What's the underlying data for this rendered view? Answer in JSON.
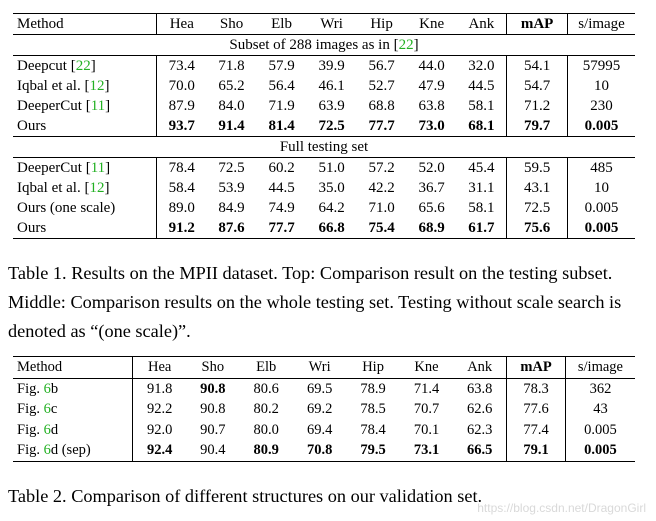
{
  "table1": {
    "header": [
      "Method",
      "Hea",
      "Sho",
      "Elb",
      "Wri",
      "Hip",
      "Kne",
      "Ank",
      "mAP",
      "s/image"
    ],
    "subset_title": {
      "text": "Subset of 288 images as in [",
      "ref": "22",
      "close": "]"
    },
    "full_title": "Full testing set",
    "subset_rows": [
      {
        "method": "Deepcut [",
        "ref": "22",
        "close": "]",
        "values": [
          "73.4",
          "71.8",
          "57.9",
          "39.9",
          "56.7",
          "44.0",
          "32.0",
          "54.1",
          "57995"
        ]
      },
      {
        "method": "Iqbal et al. [",
        "ref": "12",
        "close": "]",
        "values": [
          "70.0",
          "65.2",
          "56.4",
          "46.1",
          "52.7",
          "47.9",
          "44.5",
          "54.7",
          "10"
        ]
      },
      {
        "method": "DeeperCut [",
        "ref": "11",
        "close": "]",
        "values": [
          "87.9",
          "84.0",
          "71.9",
          "63.9",
          "68.8",
          "63.8",
          "58.1",
          "71.2",
          "230"
        ]
      },
      {
        "method": "Ours",
        "ref": "",
        "close": "",
        "values": [
          "93.7",
          "91.4",
          "81.4",
          "72.5",
          "77.7",
          "73.0",
          "68.1",
          "79.7",
          "0.005"
        ]
      }
    ],
    "full_rows": [
      {
        "method": "DeeperCut [",
        "ref": "11",
        "close": "]",
        "values": [
          "78.4",
          "72.5",
          "60.2",
          "51.0",
          "57.2",
          "52.0",
          "45.4",
          "59.5",
          "485"
        ]
      },
      {
        "method": "Iqbal et al. [",
        "ref": "12",
        "close": "]",
        "values": [
          "58.4",
          "53.9",
          "44.5",
          "35.0",
          "42.2",
          "36.7",
          "31.1",
          "43.1",
          "10"
        ]
      },
      {
        "method": "Ours (one scale)",
        "ref": "",
        "close": "",
        "values": [
          "89.0",
          "84.9",
          "74.9",
          "64.2",
          "71.0",
          "65.6",
          "58.1",
          "72.5",
          "0.005"
        ]
      },
      {
        "method": "Ours",
        "ref": "",
        "close": "",
        "values": [
          "91.2",
          "87.6",
          "77.7",
          "66.8",
          "75.4",
          "68.9",
          "61.7",
          "75.6",
          "0.005"
        ]
      }
    ],
    "caption": "Table 1. Results on the MPII dataset. Top: Comparison result on the testing subset. Middle: Comparison results on the whole testing set. Testing without scale search is denoted as “(one scale)”."
  },
  "table2": {
    "header": [
      "Method",
      "Hea",
      "Sho",
      "Elb",
      "Wri",
      "Hip",
      "Kne",
      "Ank",
      "mAP",
      "s/image"
    ],
    "rows": [
      {
        "pre": "Fig. ",
        "ref": "6",
        "post": "b",
        "values": [
          "91.8",
          "90.8",
          "80.6",
          "69.5",
          "78.9",
          "71.4",
          "63.8",
          "78.3",
          "362"
        ]
      },
      {
        "pre": "Fig. ",
        "ref": "6",
        "post": "c",
        "values": [
          "92.2",
          "90.8",
          "80.2",
          "69.2",
          "78.5",
          "70.7",
          "62.6",
          "77.6",
          "43"
        ]
      },
      {
        "pre": "Fig. ",
        "ref": "6",
        "post": "d",
        "values": [
          "92.0",
          "90.7",
          "80.0",
          "69.4",
          "78.4",
          "70.1",
          "62.3",
          "77.4",
          "0.005"
        ]
      },
      {
        "pre": "Fig. ",
        "ref": "6",
        "post": "d (sep)",
        "values": [
          "92.4",
          "90.4",
          "80.9",
          "70.8",
          "79.5",
          "73.1",
          "66.5",
          "79.1",
          "0.005"
        ]
      }
    ],
    "caption": "Table 2. Comparison of different structures on our validation set."
  },
  "watermark": "https://blog.csdn.net/DragonGirl"
}
